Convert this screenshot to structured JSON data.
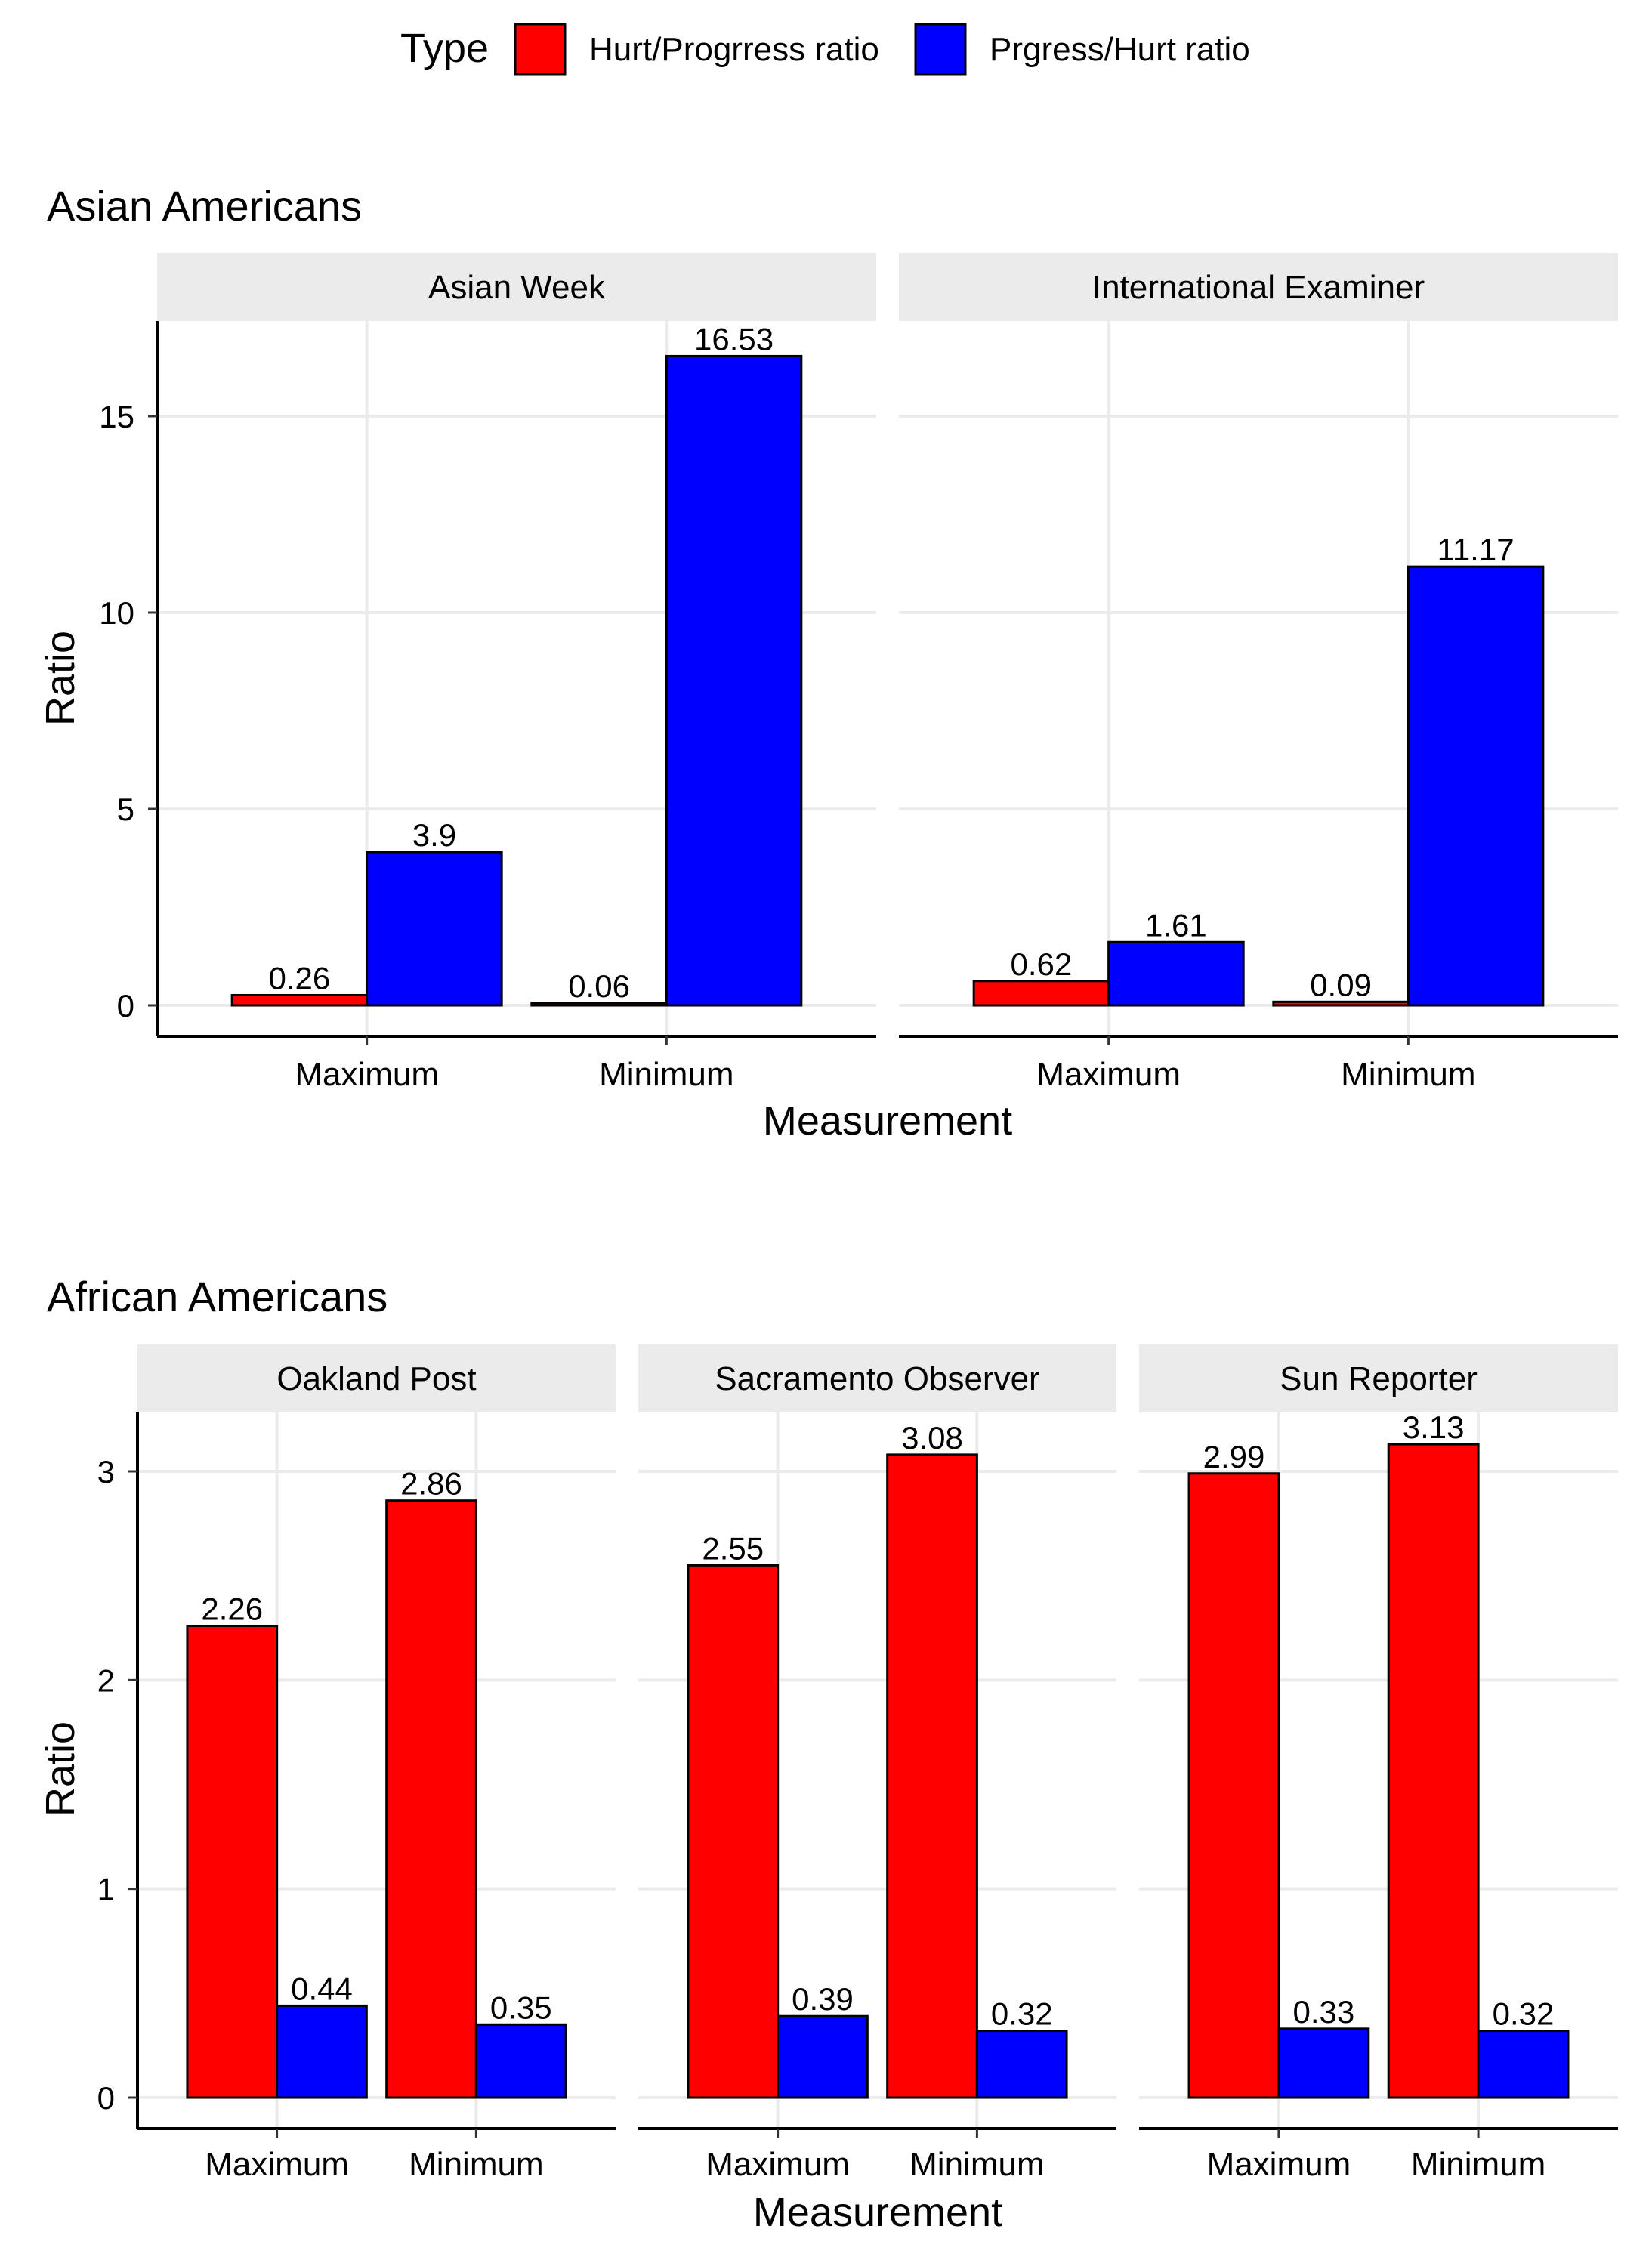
{
  "legend": {
    "title": "Type",
    "items": [
      {
        "label": "Hurt/Progrress ratio",
        "color": "#ff0000"
      },
      {
        "label": "Prgress/Hurt ratio",
        "color": "#0000ff"
      }
    ]
  },
  "chart_data": [
    {
      "type": "bar",
      "title": "Asian Americans",
      "xlabel": "Measurement",
      "ylabel": "Ratio",
      "ylim": [
        0,
        17
      ],
      "yticks": [
        0,
        5,
        10,
        15
      ],
      "categories": [
        "Maximum",
        "Minimum"
      ],
      "grid": true,
      "legend_position": "top",
      "panels": [
        {
          "name": "Asian Week",
          "series": [
            {
              "name": "Hurt/Progrress ratio",
              "values": [
                0.26,
                0.06
              ],
              "labels": [
                "0.26",
                "0.06"
              ]
            },
            {
              "name": "Prgress/Hurt ratio",
              "values": [
                3.9,
                16.53
              ],
              "labels": [
                "3.9",
                "16.53"
              ]
            }
          ]
        },
        {
          "name": "International Examiner",
          "series": [
            {
              "name": "Hurt/Progrress ratio",
              "values": [
                0.62,
                0.09
              ],
              "labels": [
                "0.62",
                "0.09"
              ]
            },
            {
              "name": "Prgress/Hurt ratio",
              "values": [
                1.61,
                11.17
              ],
              "labels": [
                "1.61",
                "11.17"
              ]
            }
          ]
        }
      ]
    },
    {
      "type": "bar",
      "title": "African Americans",
      "xlabel": "Measurement",
      "ylabel": "Ratio",
      "ylim": [
        0,
        3.2
      ],
      "yticks": [
        0,
        1,
        2,
        3
      ],
      "categories": [
        "Maximum",
        "Minimum"
      ],
      "grid": true,
      "panels": [
        {
          "name": "Oakland Post",
          "series": [
            {
              "name": "Hurt/Progrress ratio",
              "values": [
                2.26,
                2.86
              ],
              "labels": [
                "2.26",
                "2.86"
              ]
            },
            {
              "name": "Prgress/Hurt ratio",
              "values": [
                0.44,
                0.35
              ],
              "labels": [
                "0.44",
                "0.35"
              ]
            }
          ]
        },
        {
          "name": "Sacramento Observer",
          "series": [
            {
              "name": "Hurt/Progrress ratio",
              "values": [
                2.55,
                3.08
              ],
              "labels": [
                "2.55",
                "3.08"
              ]
            },
            {
              "name": "Prgress/Hurt ratio",
              "values": [
                0.39,
                0.32
              ],
              "labels": [
                "0.39",
                "0.32"
              ]
            }
          ]
        },
        {
          "name": "Sun Reporter",
          "series": [
            {
              "name": "Hurt/Progrress ratio",
              "values": [
                2.99,
                3.13
              ],
              "labels": [
                "2.99",
                "3.13"
              ]
            },
            {
              "name": "Prgress/Hurt ratio",
              "values": [
                0.33,
                0.32
              ],
              "labels": [
                "0.33",
                "0.32"
              ]
            }
          ]
        }
      ]
    }
  ]
}
